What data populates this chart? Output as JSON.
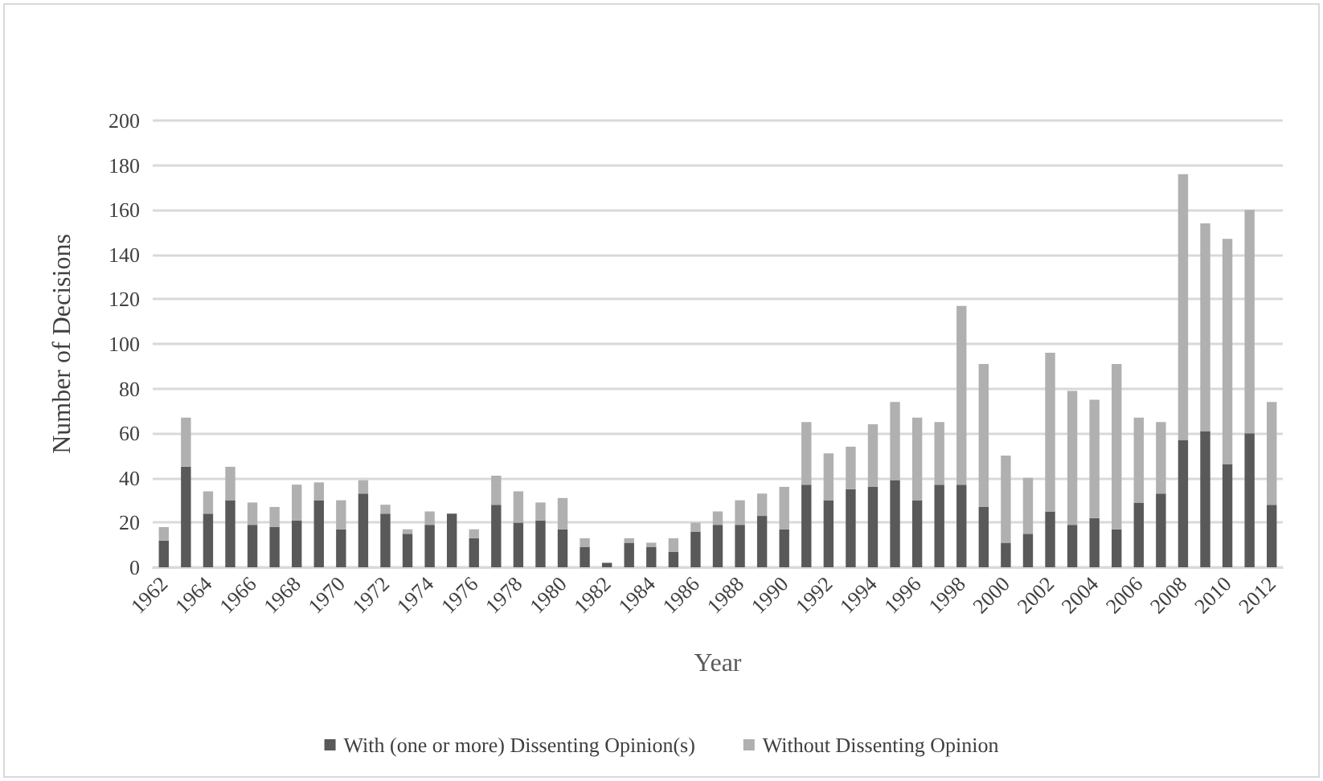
{
  "chart_data": {
    "type": "bar",
    "stacked": true,
    "xlabel": "Year",
    "ylabel": "Number of Decisions",
    "categories": [
      "1962",
      null,
      "1964",
      null,
      "1966",
      null,
      "1968",
      null,
      "1970",
      null,
      "1972",
      null,
      "1974",
      null,
      "1976",
      null,
      "1978",
      null,
      "1980",
      null,
      "1982",
      null,
      "1984",
      null,
      "1986",
      null,
      "1988",
      null,
      "1990",
      null,
      "1992",
      null,
      "1994",
      null,
      "1996",
      null,
      "1998",
      null,
      "2000",
      null,
      "2002",
      null,
      "2004",
      null,
      "2006",
      null,
      "2008",
      null,
      "2010",
      null,
      "2012"
    ],
    "series": [
      {
        "name": "With (one or more) Dissenting Opinion(s)",
        "color": "#595959",
        "values": [
          12,
          45,
          24,
          30,
          19,
          18,
          21,
          30,
          17,
          33,
          24,
          15,
          19,
          24,
          13,
          28,
          20,
          21,
          17,
          9,
          2,
          11,
          9,
          7,
          16,
          19,
          19,
          23,
          17,
          37,
          30,
          35,
          36,
          39,
          30,
          37,
          37,
          27,
          11,
          15,
          25,
          19,
          22,
          17,
          29,
          33,
          57,
          61,
          46,
          60,
          28
        ]
      },
      {
        "name": "Without Dissenting Opinion",
        "color": "#b0b0b0",
        "values": [
          6,
          22,
          10,
          15,
          10,
          9,
          16,
          8,
          13,
          6,
          4,
          2,
          6,
          0,
          4,
          13,
          14,
          8,
          14,
          4,
          0,
          2,
          2,
          6,
          4,
          6,
          11,
          10,
          19,
          28,
          21,
          19,
          28,
          35,
          37,
          28,
          80,
          64,
          39,
          25,
          71,
          60,
          53,
          74,
          38,
          32,
          119,
          93,
          101,
          100,
          46
        ]
      }
    ],
    "ylim": [
      0,
      200
    ],
    "yticks": [
      0,
      20,
      40,
      60,
      80,
      100,
      120,
      140,
      160,
      180,
      200
    ],
    "grid": "y",
    "legend": "bottom"
  }
}
